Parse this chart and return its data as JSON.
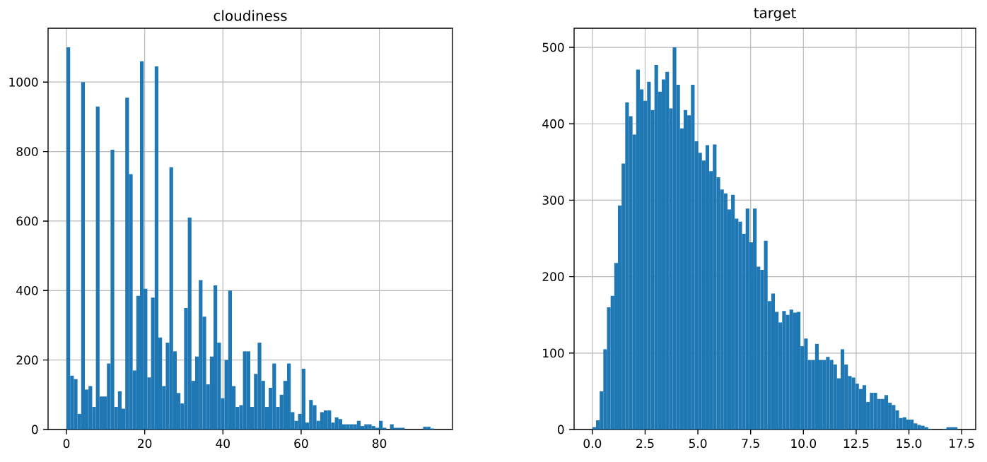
{
  "chart_data": [
    {
      "type": "histogram",
      "title": "cloudiness",
      "color": "#1f77b4",
      "grid": true,
      "bins": [
        0,
        0.94,
        1.88,
        2.82,
        3.76,
        4.7,
        5.64,
        6.58,
        7.52,
        8.46,
        9.4,
        10.34,
        11.28,
        12.22,
        13.16,
        14.1,
        15.04,
        15.98,
        16.92,
        17.86,
        18.8,
        19.74,
        20.68,
        21.62,
        22.56,
        23.5,
        24.44,
        25.38,
        26.32,
        27.26,
        28.2,
        29.14,
        30.08,
        31.02,
        31.96,
        32.9,
        33.84,
        34.78,
        35.72,
        36.66,
        37.6,
        38.54,
        39.48,
        40.42,
        41.36,
        42.3,
        43.24,
        44.18,
        45.12,
        46.06,
        47,
        47.94,
        48.88,
        49.82,
        50.76,
        51.7,
        52.64,
        53.58,
        54.52,
        55.46,
        56.4,
        57.34,
        58.28,
        59.22,
        60.16,
        61.1,
        62.04,
        62.98,
        63.92,
        64.86,
        65.8,
        66.74,
        67.68,
        68.62,
        69.56,
        70.5,
        71.44,
        72.38,
        73.32,
        74.26,
        75.2,
        76.14,
        77.08,
        78.02,
        78.96,
        79.9,
        80.84,
        81.78,
        82.72,
        83.66,
        84.6,
        85.54,
        86.48,
        87.42,
        88.36,
        89.3,
        90.24,
        91.18,
        92.12,
        93.06,
        94
      ],
      "values": [
        1100,
        155,
        145,
        45,
        1000,
        115,
        125,
        65,
        930,
        95,
        95,
        190,
        805,
        65,
        110,
        60,
        955,
        735,
        170,
        385,
        1060,
        405,
        150,
        380,
        1045,
        265,
        125,
        250,
        755,
        225,
        105,
        75,
        350,
        610,
        140,
        210,
        430,
        325,
        130,
        210,
        415,
        250,
        90,
        200,
        400,
        125,
        65,
        70,
        225,
        225,
        65,
        160,
        250,
        140,
        65,
        120,
        190,
        65,
        100,
        140,
        190,
        50,
        25,
        45,
        175,
        20,
        85,
        70,
        25,
        50,
        55,
        55,
        20,
        35,
        30,
        15,
        15,
        15,
        15,
        25,
        10,
        15,
        15,
        10,
        5,
        25,
        5,
        0,
        15,
        5,
        5,
        5,
        0,
        0,
        0,
        0,
        0,
        8,
        8,
        3
      ],
      "xlim": [
        -4.7,
        98.7
      ],
      "ylim": [
        0,
        1155
      ],
      "xticks": [
        0,
        20,
        40,
        60,
        80
      ],
      "yticks": [
        0,
        200,
        400,
        600,
        800,
        1000
      ]
    },
    {
      "type": "histogram",
      "title": "target",
      "color": "#1f77b4",
      "grid": true,
      "bins": [
        0,
        0.173,
        0.346,
        0.519,
        0.692,
        0.865,
        1.038,
        1.211,
        1.384,
        1.557,
        1.73,
        1.903,
        2.076,
        2.249,
        2.422,
        2.595,
        2.768,
        2.941,
        3.114,
        3.287,
        3.46,
        3.633,
        3.806,
        3.979,
        4.152,
        4.325,
        4.498,
        4.671,
        4.844,
        5.017,
        5.19,
        5.363,
        5.536,
        5.709,
        5.882,
        6.055,
        6.228,
        6.401,
        6.574,
        6.747,
        6.92,
        7.093,
        7.266,
        7.439,
        7.612,
        7.785,
        7.958,
        8.131,
        8.304,
        8.477,
        8.65,
        8.823,
        8.996,
        9.169,
        9.342,
        9.515,
        9.688,
        9.861,
        10.034,
        10.207,
        10.38,
        10.553,
        10.726,
        10.899,
        11.072,
        11.245,
        11.418,
        11.591,
        11.764,
        11.937,
        12.11,
        12.283,
        12.456,
        12.629,
        12.802,
        12.975,
        13.148,
        13.321,
        13.494,
        13.667,
        13.84,
        14.013,
        14.186,
        14.359,
        14.532,
        14.705,
        14.878,
        15.051,
        15.224,
        15.397,
        15.57,
        15.743,
        15.916,
        16.089,
        16.262,
        16.435,
        16.608,
        16.781,
        16.954,
        17.127,
        17.3
      ],
      "values": [
        3,
        12,
        50,
        105,
        160,
        175,
        218,
        293,
        348,
        428,
        410,
        386,
        471,
        445,
        430,
        455,
        418,
        477,
        442,
        458,
        468,
        420,
        500,
        451,
        394,
        418,
        411,
        451,
        377,
        362,
        352,
        372,
        338,
        373,
        330,
        314,
        309,
        288,
        307,
        276,
        272,
        256,
        289,
        245,
        289,
        213,
        209,
        247,
        168,
        178,
        154,
        140,
        155,
        150,
        157,
        153,
        154,
        109,
        119,
        91,
        91,
        112,
        91,
        91,
        95,
        91,
        85,
        67,
        105,
        85,
        70,
        68,
        60,
        53,
        58,
        36,
        48,
        48,
        40,
        40,
        45,
        35,
        32,
        25,
        15,
        16,
        13,
        13,
        8,
        6,
        5,
        3,
        1,
        0,
        0,
        0,
        1,
        3,
        3,
        3
      ],
      "xlim": [
        -0.865,
        18.165
      ],
      "ylim": [
        0,
        525
      ],
      "xticks": [
        {
          "value": 0,
          "label": "0.0"
        },
        {
          "value": 2.5,
          "label": "2.5"
        },
        {
          "value": 5,
          "label": "5.0"
        },
        {
          "value": 7.5,
          "label": "7.5"
        },
        {
          "value": 10,
          "label": "10.0"
        },
        {
          "value": 12.5,
          "label": "12.5"
        },
        {
          "value": 15,
          "label": "15.0"
        },
        {
          "value": 17.5,
          "label": "17.5"
        }
      ],
      "yticks": [
        0,
        100,
        200,
        300,
        400,
        500
      ]
    }
  ]
}
